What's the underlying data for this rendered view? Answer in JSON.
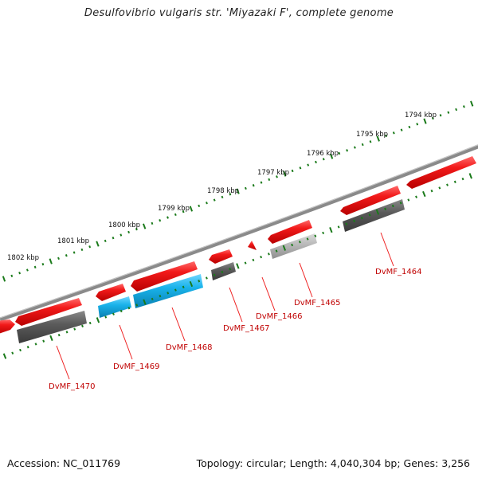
{
  "header": {
    "title": "Desulfovibrio vulgaris str. 'Miyazaki F', complete genome"
  },
  "footer": {
    "accession": "Accession: NC_011769",
    "summary": "Topology: circular; Length: 4,040,304 bp; Genes: 3,256"
  },
  "scale": {
    "tick_labels": [
      "1794 kbp",
      "1795 kbp",
      "1796 kbp",
      "1797 kbp",
      "1798 kbp",
      "1799 kbp",
      "1800 kbp",
      "1801 kbp",
      "1802 kbp"
    ]
  },
  "genes": [
    {
      "label": "DvMF_1464"
    },
    {
      "label": "DvMF_1465"
    },
    {
      "label": "DvMF_1466"
    },
    {
      "label": "DvMF_1467"
    },
    {
      "label": "DvMF_1468"
    },
    {
      "label": "DvMF_1469"
    },
    {
      "label": "DvMF_1470"
    }
  ],
  "colors": {
    "cds": "#ee1111",
    "feature_grey": "#5e5e5e",
    "feature_light_grey": "#b8b8b8",
    "feature_cyan": "#19b2ea",
    "backbone": "#7a7a7a",
    "ticks": "#1a7a1a",
    "label_red": "#c00000"
  }
}
